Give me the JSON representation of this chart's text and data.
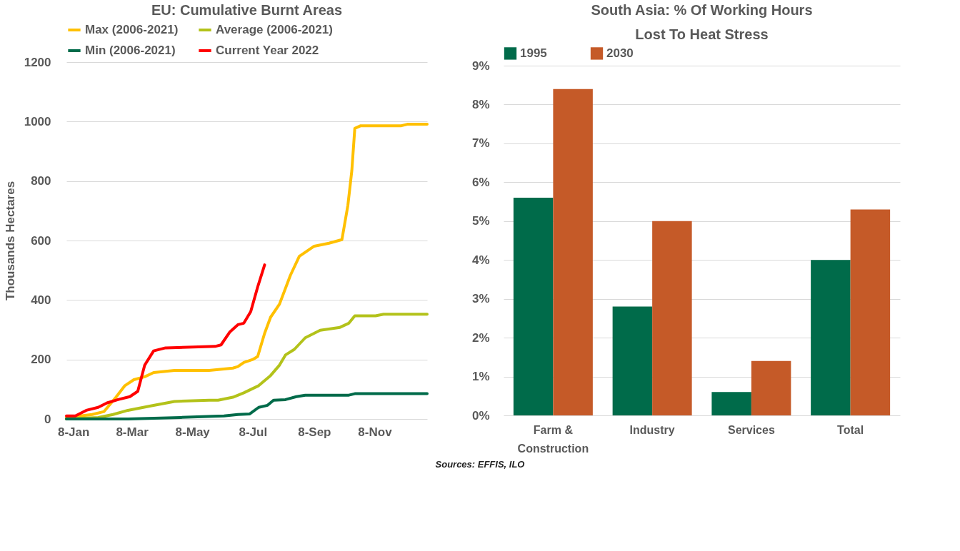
{
  "chart_data": [
    {
      "type": "line",
      "title": "EU: Cumulative Burnt Areas",
      "ylabel": "Thousands Hectares",
      "xlim": [
        "--01-01",
        "--12-31"
      ],
      "xticks": [
        {
          "value": "--01-08",
          "label": "8-Jan"
        },
        {
          "value": "--03-08",
          "label": "8-Mar"
        },
        {
          "value": "--05-08",
          "label": "8-May"
        },
        {
          "value": "--07-08",
          "label": "8-Jul"
        },
        {
          "value": "--09-08",
          "label": "8-Sep"
        },
        {
          "value": "--11-08",
          "label": "8-Nov"
        }
      ],
      "ylim": [
        0,
        1200
      ],
      "yticks": [
        0,
        200,
        400,
        600,
        800,
        1000,
        1200
      ],
      "grid": "y",
      "legend": "top",
      "line_style": "solid",
      "marker": "none",
      "series": [
        {
          "name": "Max (2006-2021)",
          "color": "#ffc000",
          "x": [
            "--01-01",
            "--01-27",
            "--02-08",
            "--02-20",
            "--03-01",
            "--03-10",
            "--03-21",
            "--03-30",
            "--04-20",
            "--05-25",
            "--06-18",
            "--06-23",
            "--06-29",
            "--07-08",
            "--07-13",
            "--07-20",
            "--07-26",
            "--08-04",
            "--08-15",
            "--08-24",
            "--09-08",
            "--09-23",
            "--10-06",
            "--10-12",
            "--10-16",
            "--10-19",
            "--10-25",
            "--12-05",
            "--12-11",
            "--12-31"
          ],
          "values": [
            5,
            15,
            25,
            73,
            112,
            132,
            142,
            156,
            163,
            163,
            171,
            176,
            190,
            200,
            210,
            288,
            342,
            386,
            483,
            547,
            581,
            591,
            603,
            718,
            835,
            977,
            986,
            986,
            991,
            991
          ]
        },
        {
          "name": "Average (2006-2021)",
          "color": "#b3c21a",
          "x": [
            "--01-01",
            "--02-02",
            "--02-17",
            "--03-04",
            "--03-27",
            "--04-20",
            "--05-25",
            "--06-03",
            "--06-18",
            "--06-29",
            "--07-14",
            "--07-26",
            "--08-04",
            "--08-10",
            "--08-19",
            "--08-30",
            "--09-14",
            "--10-04",
            "--10-13",
            "--10-19",
            "--11-09",
            "--11-17",
            "--12-31"
          ],
          "values": [
            0,
            5,
            15,
            29,
            44,
            59,
            63,
            63,
            73,
            88,
            112,
            146,
            181,
            215,
            234,
            273,
            298,
            308,
            322,
            347,
            347,
            352,
            352
          ]
        },
        {
          "name": "Min (2006-2021)",
          "color": "#006b4a",
          "x": [
            "--01-01",
            "--03-04",
            "--04-26",
            "--06-09",
            "--06-23",
            "--07-05",
            "--07-14",
            "--07-23",
            "--07-29",
            "--08-10",
            "--08-21",
            "--08-30",
            "--10-13",
            "--10-19",
            "--12-31"
          ],
          "values": [
            0,
            0,
            5,
            10,
            15,
            17,
            39,
            46,
            63,
            65,
            75,
            80,
            80,
            85,
            85
          ]
        },
        {
          "name": "Current Year 2022",
          "color": "#ff0000",
          "x": [
            "--01-01",
            "--01-10",
            "--01-21",
            "--02-02",
            "--02-11",
            "--02-22",
            "--03-06",
            "--03-14",
            "--03-21",
            "--03-30",
            "--04-11",
            "--05-31",
            "--06-06",
            "--06-15",
            "--06-23",
            "--06-29",
            "--07-06",
            "--07-13",
            "--07-20"
          ],
          "values": [
            10,
            10,
            29,
            39,
            54,
            65,
            75,
            93,
            181,
            229,
            239,
            244,
            249,
            293,
            317,
            322,
            361,
            444,
            518
          ]
        }
      ],
      "annotations": [
        "Sources: EFFIS, ILO"
      ]
    },
    {
      "type": "bar",
      "title": "South Asia: % Of Working Hours Lost To Heat Stress",
      "categories": [
        "Farm & Construction",
        "Industry",
        "Services",
        "Total"
      ],
      "ylim": [
        0,
        9
      ],
      "yticks": [
        {
          "value": 0,
          "label": "0%"
        },
        {
          "value": 1,
          "label": "1%"
        },
        {
          "value": 2,
          "label": "2%"
        },
        {
          "value": 3,
          "label": "3%"
        },
        {
          "value": 4,
          "label": "4%"
        },
        {
          "value": 5,
          "label": "5%"
        },
        {
          "value": 6,
          "label": "6%"
        },
        {
          "value": 7,
          "label": "7%"
        },
        {
          "value": 8,
          "label": "8%"
        },
        {
          "value": 9,
          "label": "9%"
        }
      ],
      "grid": "y",
      "legend": "top",
      "series": [
        {
          "name": "1995",
          "color": "#006b4a",
          "values": [
            5.6,
            2.8,
            0.6,
            4.0
          ]
        },
        {
          "name": "2030",
          "color": "#c55a28",
          "values": [
            8.4,
            5.0,
            1.4,
            5.3
          ]
        }
      ]
    }
  ]
}
